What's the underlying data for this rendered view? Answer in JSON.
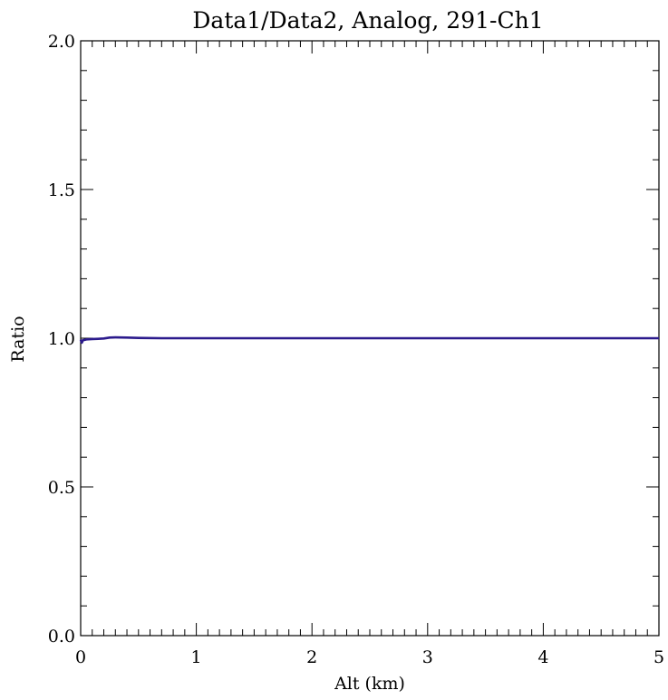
{
  "chart_data": {
    "type": "line",
    "title": "Data1/Data2, Analog, 291-Ch1",
    "xlabel": "Alt (km)",
    "ylabel": "Ratio",
    "xlim": [
      0,
      5
    ],
    "ylim": [
      0.0,
      2.0
    ],
    "x_ticks": [
      "0",
      "1",
      "2",
      "3",
      "4",
      "5"
    ],
    "y_ticks": [
      "0.0",
      "0.5",
      "1.0",
      "1.5",
      "2.0"
    ],
    "x_minor_step": 0.1,
    "y_minor_step": 0.1,
    "grid": false,
    "series": [
      {
        "color": "#2b1a8c",
        "x": [
          0.0,
          0.01,
          0.02,
          0.05,
          0.1,
          0.15,
          0.2,
          0.25,
          0.3,
          0.4,
          0.5,
          0.7,
          1.0,
          1.5,
          2.0,
          2.5,
          3.0,
          3.5,
          4.0,
          4.5,
          5.0
        ],
        "y": [
          0.995,
          0.985,
          0.993,
          0.996,
          0.997,
          0.998,
          0.999,
          1.002,
          1.003,
          1.002,
          1.001,
          1.0,
          1.0,
          1.0,
          1.0,
          1.0,
          1.0,
          1.0,
          1.0,
          1.0,
          1.0
        ]
      }
    ]
  }
}
